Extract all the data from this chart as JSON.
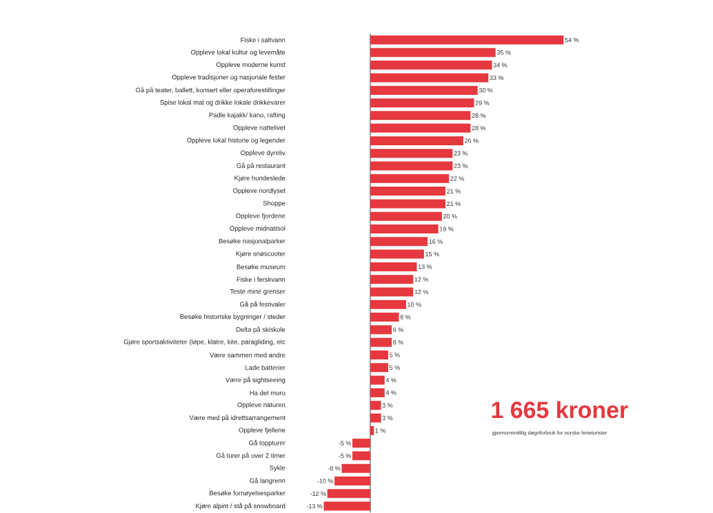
{
  "chart_data": {
    "type": "bar",
    "orientation": "horizontal",
    "color": "#e5383f",
    "categories": [
      "Fiske i saltvann",
      "Oppleve lokal kultur og levemåte",
      "Oppleve moderne kunst",
      "Oppleve tradisjoner og nasjonale fester",
      "Gå på teater, ballett, konsert eller operaforestillinger",
      "Spise lokal mat og drikke lokale drikkevarer",
      "Padle kajakk/ kano, rafting",
      "Oppleve nattelivet",
      "Oppleve lokal historie og legender",
      "Oppleve dyreliv",
      "Gå på restaurant",
      "Kjøre hundeslede",
      "Oppleve nordlyset",
      "Shoppe",
      "Oppleve fjordene",
      "Oppleve midnattsol",
      "Besøke nasjonalparker",
      "Kjøre snøscooter",
      "Besøke museum",
      "Fiske i ferskvann",
      "Teste mine grenser",
      "Gå på festivaler",
      "Besøke historiske bygninger / steder",
      "Delta på skiskole",
      "Gjøre sportsaktiviteter (løpe, klatre, kite, paragliding, etc",
      "Være sammen med andre",
      "Lade batterier",
      "Være på sightseeing",
      "Ha det moro",
      "Oppleve naturen",
      "Være med på idrettsarrangement",
      "Oppleve fjellene",
      "Gå toppturer",
      "Gå turer på over 2 timer",
      "Sykle",
      "Gå langrenn",
      "Besøke fornøyelsesparker",
      "Kjøre alpint / stå på snowboard"
    ],
    "values": [
      54,
      35,
      34,
      33,
      30,
      29,
      28,
      28,
      26,
      23,
      23,
      22,
      21,
      21,
      20,
      19,
      16,
      15,
      13,
      12,
      12,
      10,
      8,
      6,
      6,
      5,
      5,
      4,
      4,
      3,
      3,
      1,
      -5,
      -5,
      -8,
      -10,
      -12,
      -13
    ],
    "value_labels": [
      "54 %",
      "35 %",
      "34 %",
      "33 %",
      "30 %",
      "29 %",
      "28 %",
      "28 %",
      "26 %",
      "23 %",
      "23 %",
      "22 %",
      "21 %",
      "21 %",
      "20 %",
      "19 %",
      "16 %",
      "15 %",
      "13 %",
      "12 %",
      "12 %",
      "10 %",
      "8 %",
      "6 %",
      "6 %",
      "5 %",
      "5 %",
      "4 %",
      "4 %",
      "3 %",
      "3 %",
      "1 %",
      "-5 %",
      "-5 %",
      "-8 %",
      "-10 %",
      "-12 %",
      "-13 %"
    ],
    "annotations": [
      "1 665 kroner",
      "gjennomsnittlig døgnforbruk for norske ferieturister"
    ]
  }
}
